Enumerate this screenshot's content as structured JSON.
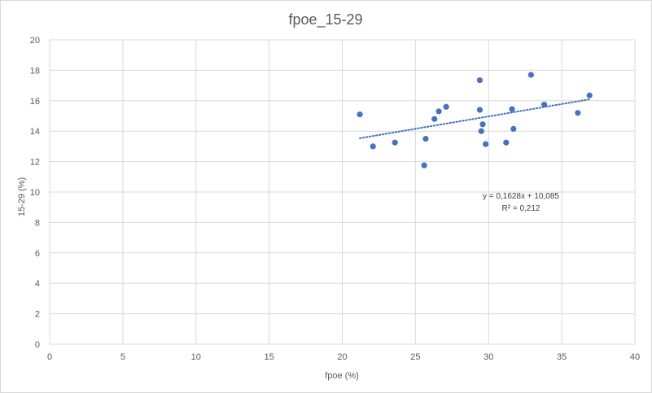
{
  "chart_data": {
    "type": "scatter",
    "title": "fpoe_15-29",
    "xlabel": "fpoe (%)",
    "ylabel": "15-29 (%)",
    "xlim": [
      0,
      40
    ],
    "ylim": [
      0,
      20
    ],
    "xticks": [
      0,
      5,
      10,
      15,
      20,
      25,
      30,
      35,
      40
    ],
    "yticks": [
      0,
      2,
      4,
      6,
      8,
      10,
      12,
      14,
      16,
      18,
      20
    ],
    "grid": true,
    "points": [
      {
        "x": 21.2,
        "y": 15.1
      },
      {
        "x": 22.1,
        "y": 13.0
      },
      {
        "x": 23.6,
        "y": 13.25
      },
      {
        "x": 25.6,
        "y": 11.75
      },
      {
        "x": 25.7,
        "y": 13.5
      },
      {
        "x": 26.3,
        "y": 14.8
      },
      {
        "x": 26.6,
        "y": 15.3
      },
      {
        "x": 27.1,
        "y": 15.6
      },
      {
        "x": 29.4,
        "y": 17.35
      },
      {
        "x": 29.4,
        "y": 15.4
      },
      {
        "x": 29.5,
        "y": 14.0
      },
      {
        "x": 29.6,
        "y": 14.45
      },
      {
        "x": 29.8,
        "y": 13.15
      },
      {
        "x": 31.2,
        "y": 13.25
      },
      {
        "x": 31.6,
        "y": 15.45
      },
      {
        "x": 31.7,
        "y": 14.15
      },
      {
        "x": 32.9,
        "y": 17.7
      },
      {
        "x": 33.8,
        "y": 15.75
      },
      {
        "x": 36.1,
        "y": 15.2
      },
      {
        "x": 36.9,
        "y": 16.35
      }
    ],
    "trendline": {
      "type": "linear",
      "slope": 0.1628,
      "intercept": 10.085,
      "x_range": [
        21.2,
        36.9
      ],
      "equation_text": "y = 0,1628x + 10,085",
      "r2_text": "R² = 0,212"
    },
    "colors": {
      "marker": "#4472c4",
      "trendline": "#4472c4",
      "grid": "#d9d9d9"
    }
  }
}
